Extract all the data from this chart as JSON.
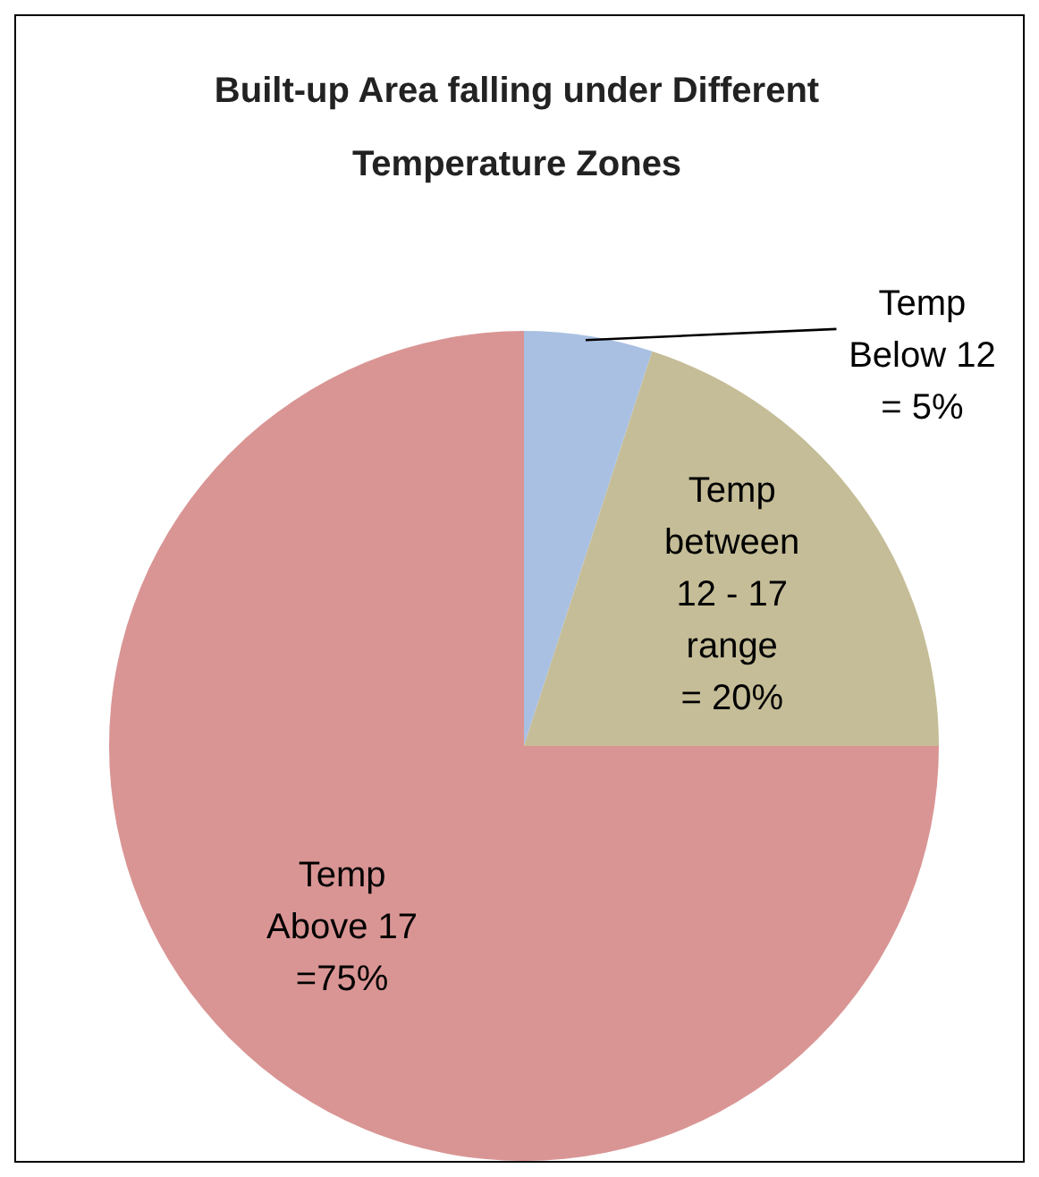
{
  "chart_data": {
    "type": "pie",
    "title": "Built-up Area falling under Different Temperature Zones",
    "categories": [
      "Temp Below 12",
      "Temp between 12 - 17 range",
      "Temp Above 17"
    ],
    "values": [
      5,
      20,
      75
    ],
    "value_labels": [
      "= 5%",
      "= 20%",
      "=75%"
    ],
    "colors": [
      "#a9c0e2",
      "#c5bd97",
      "#d99594"
    ]
  }
}
